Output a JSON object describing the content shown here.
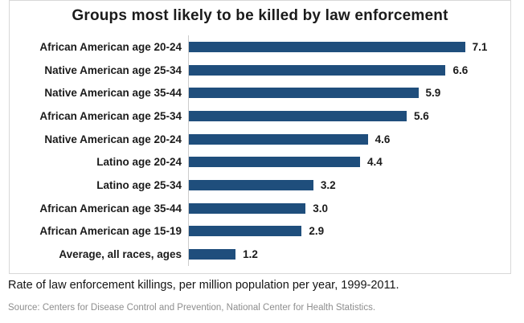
{
  "chart_data": {
    "type": "bar",
    "orientation": "horizontal",
    "title": "Groups most likely to be killed by law enforcement",
    "categories": [
      "African American age 20-24",
      "Native American age 25-34",
      "Native American age 35-44",
      "African American age 25-34",
      "Native American age 20-24",
      "Latino age 20-24",
      "Latino age 25-34",
      "African American age 35-44",
      "African American age 15-19",
      "Average, all races, ages"
    ],
    "values": [
      7.1,
      6.6,
      5.9,
      5.6,
      4.6,
      4.4,
      3.2,
      3.0,
      2.9,
      1.2
    ],
    "value_labels": [
      "7.1",
      "6.6",
      "5.9",
      "5.6",
      "4.6",
      "4.4",
      "3.2",
      "3.0",
      "2.9",
      "1.2"
    ],
    "xlim": [
      0,
      7.9
    ],
    "grid": false,
    "legend": false,
    "bar_color": "#1f4e7c",
    "axis_line_color": "#cccccc"
  },
  "caption": "Rate of law enforcement killings, per million population per year, 1999-2011.",
  "source": "Source: Centers for Disease Control and Prevention, National Center for Health Statistics.",
  "colors": {
    "bar": "#1f4e7c",
    "card_border": "#d8d8d8",
    "text": "#1b1b1b",
    "source_text": "#8e8e8e"
  }
}
